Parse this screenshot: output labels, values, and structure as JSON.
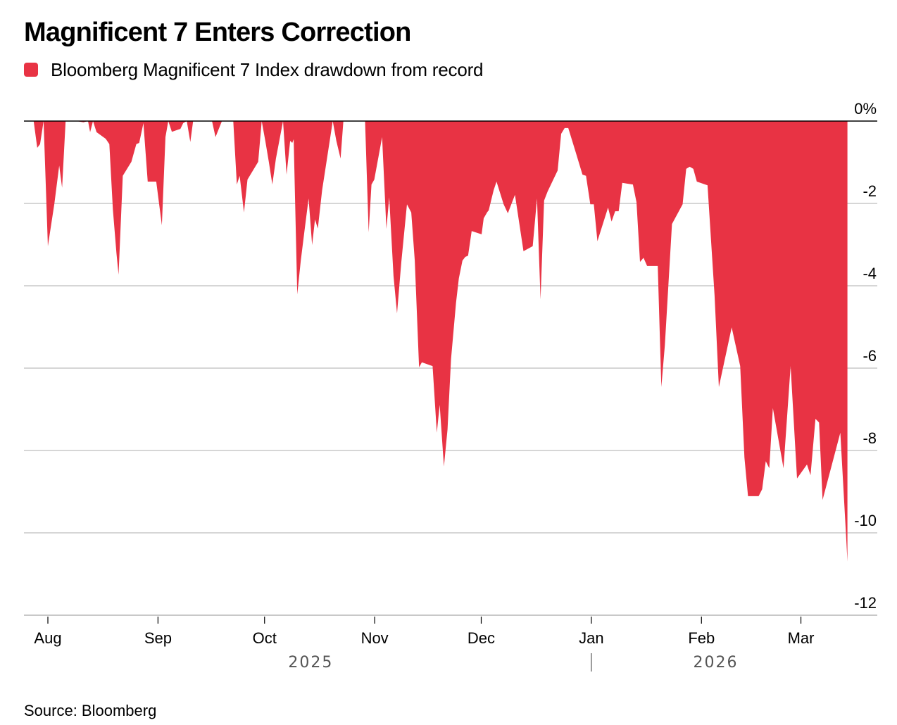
{
  "title": "Magnificent 7 Enters Correction",
  "legend": {
    "label": "Bloomberg Magnificent 7 Index drawdown from record",
    "color": "#e83344"
  },
  "source": "Source: Bloomberg",
  "chart_data": {
    "type": "area",
    "title": "Magnificent 7 Enters Correction",
    "xlabel": "",
    "ylabel": "",
    "y_unit": "%",
    "ylim": [
      -12,
      0
    ],
    "y_ticks": [
      0,
      -2,
      -4,
      -6,
      -8,
      -10,
      -12
    ],
    "y_tick_labels": [
      "0%",
      "-2",
      "-4",
      "-6",
      "-8",
      "-10",
      "-12"
    ],
    "grid": true,
    "legend_position": "top-left",
    "x_unit": "days since 2025-08-01",
    "x_range": [
      -4,
      231
    ],
    "x_ticks": [
      {
        "label": "Aug",
        "day": 0
      },
      {
        "label": "Sep",
        "day": 31
      },
      {
        "label": "Oct",
        "day": 61
      },
      {
        "label": "Nov",
        "day": 92
      },
      {
        "label": "Dec",
        "day": 122
      },
      {
        "label": "Jan",
        "day": 153
      },
      {
        "label": "Feb",
        "day": 184
      },
      {
        "label": "Mar",
        "day": 212
      }
    ],
    "years": [
      {
        "label": "2025",
        "day": 74
      },
      {
        "label": "2026",
        "day": 188
      }
    ],
    "year_separator_day": 153,
    "series": [
      {
        "name": "Bloomberg Magnificent 7 Index drawdown from record",
        "color": "#e83344",
        "points": [
          [
            -4.0,
            0.0
          ],
          [
            -3.0,
            -0.65
          ],
          [
            -2.2,
            -0.56
          ],
          [
            -1.2,
            0.0
          ],
          [
            0.0,
            -3.04
          ],
          [
            1.8,
            -2.02
          ],
          [
            3.2,
            -1.08
          ],
          [
            4.0,
            -1.62
          ],
          [
            5.0,
            0.0
          ],
          [
            8.0,
            0.0
          ],
          [
            10.0,
            -0.03
          ],
          [
            11.3,
            0.0
          ],
          [
            11.9,
            -0.27
          ],
          [
            12.7,
            0.0
          ],
          [
            13.7,
            -0.27
          ],
          [
            16.3,
            -0.43
          ],
          [
            17.3,
            -0.56
          ],
          [
            18.3,
            -2.14
          ],
          [
            19.3,
            -3.21
          ],
          [
            19.9,
            -3.73
          ],
          [
            21.1,
            -1.33
          ],
          [
            23.5,
            -0.99
          ],
          [
            24.9,
            -0.56
          ],
          [
            25.7,
            -0.53
          ],
          [
            26.9,
            -0.05
          ],
          [
            28.1,
            -1.47
          ],
          [
            30.5,
            -1.47
          ],
          [
            32.1,
            -2.53
          ],
          [
            33.1,
            -0.39
          ],
          [
            33.9,
            0.0
          ],
          [
            34.9,
            -0.26
          ],
          [
            37.3,
            -0.19
          ],
          [
            38.1,
            -0.05
          ],
          [
            39.1,
            0.0
          ],
          [
            40.1,
            -0.51
          ],
          [
            40.9,
            0.0
          ],
          [
            46.2,
            0.0
          ],
          [
            47.2,
            -0.39
          ],
          [
            49.0,
            0.0
          ],
          [
            52.2,
            0.0
          ],
          [
            53.2,
            -1.54
          ],
          [
            54.0,
            -1.33
          ],
          [
            55.2,
            -2.22
          ],
          [
            56.2,
            -1.42
          ],
          [
            59.2,
            -0.99
          ],
          [
            60.2,
            0.0
          ],
          [
            61.2,
            -0.48
          ],
          [
            62.2,
            -0.99
          ],
          [
            63.2,
            -1.54
          ],
          [
            64.2,
            -0.91
          ],
          [
            66.2,
            0.0
          ],
          [
            67.2,
            -1.3
          ],
          [
            68.2,
            -0.48
          ],
          [
            68.8,
            -0.53
          ],
          [
            69.2,
            -0.44
          ],
          [
            70.2,
            -4.21
          ],
          [
            71.2,
            -3.39
          ],
          [
            72.2,
            -2.7
          ],
          [
            73.4,
            -1.88
          ],
          [
            74.4,
            -3.01
          ],
          [
            75.2,
            -2.39
          ],
          [
            76.0,
            -2.61
          ],
          [
            77.2,
            -1.68
          ],
          [
            80.2,
            0.0
          ],
          [
            81.2,
            -0.48
          ],
          [
            82.4,
            -0.91
          ],
          [
            83.2,
            0.0
          ],
          [
            83.8,
            0.0
          ],
          [
            88.9,
            0.0
          ],
          [
            89.3,
            0.0
          ],
          [
            90.3,
            -2.7
          ],
          [
            91.1,
            -1.54
          ],
          [
            91.9,
            -1.42
          ],
          [
            94.1,
            -0.39
          ],
          [
            95.3,
            -2.62
          ],
          [
            96.1,
            -1.85
          ],
          [
            97.3,
            -3.76
          ],
          [
            98.3,
            -4.67
          ],
          [
            99.5,
            -3.42
          ],
          [
            101.1,
            -2.02
          ],
          [
            102.3,
            -2.22
          ],
          [
            103.3,
            -3.39
          ],
          [
            104.5,
            -5.98
          ],
          [
            105.3,
            -5.86
          ],
          [
            108.3,
            -5.95
          ],
          [
            109.5,
            -7.57
          ],
          [
            110.3,
            -6.89
          ],
          [
            111.5,
            -8.39
          ],
          [
            112.5,
            -7.49
          ],
          [
            113.5,
            -5.78
          ],
          [
            114.9,
            -4.41
          ],
          [
            115.7,
            -3.82
          ],
          [
            116.7,
            -3.39
          ],
          [
            117.5,
            -3.3
          ],
          [
            118.3,
            -3.27
          ],
          [
            119.3,
            -2.67
          ],
          [
            122.1,
            -2.75
          ],
          [
            122.7,
            -2.36
          ],
          [
            123.7,
            -2.21
          ],
          [
            124.1,
            -2.17
          ],
          [
            125.5,
            -1.68
          ],
          [
            126.3,
            -1.47
          ],
          [
            128.3,
            -2.02
          ],
          [
            129.5,
            -2.24
          ],
          [
            131.5,
            -1.79
          ],
          [
            133.9,
            -3.16
          ],
          [
            136.5,
            -3.04
          ],
          [
            137.7,
            -1.88
          ],
          [
            138.7,
            -4.33
          ],
          [
            139.7,
            -1.93
          ],
          [
            140.7,
            -1.71
          ],
          [
            143.5,
            -1.2
          ],
          [
            144.5,
            -0.31
          ],
          [
            145.5,
            -0.17
          ],
          [
            146.5,
            -0.17
          ],
          [
            148.5,
            -0.73
          ],
          [
            150.5,
            -1.3
          ],
          [
            151.5,
            -1.33
          ],
          [
            152.7,
            -2.02
          ],
          [
            153.7,
            -2.02
          ],
          [
            154.7,
            -2.92
          ],
          [
            157.7,
            -2.1
          ],
          [
            158.7,
            -2.44
          ],
          [
            159.7,
            -2.19
          ],
          [
            160.7,
            -2.19
          ],
          [
            161.7,
            -1.5
          ],
          [
            164.7,
            -1.54
          ],
          [
            165.7,
            -1.97
          ],
          [
            166.7,
            -3.42
          ],
          [
            167.7,
            -3.32
          ],
          [
            168.7,
            -3.52
          ],
          [
            171.7,
            -3.52
          ],
          [
            172.7,
            -6.46
          ],
          [
            173.7,
            -5.44
          ],
          [
            175.7,
            -2.5
          ],
          [
            178.7,
            -2.02
          ],
          [
            179.7,
            -1.16
          ],
          [
            180.7,
            -1.11
          ],
          [
            181.7,
            -1.16
          ],
          [
            182.7,
            -1.47
          ],
          [
            185.7,
            -1.56
          ],
          [
            187.7,
            -4.24
          ],
          [
            188.9,
            -6.46
          ],
          [
            192.5,
            -5.01
          ],
          [
            194.9,
            -5.95
          ],
          [
            196.1,
            -8.17
          ],
          [
            197.1,
            -9.11
          ],
          [
            200.1,
            -9.11
          ],
          [
            201.1,
            -8.94
          ],
          [
            202.1,
            -8.26
          ],
          [
            203.1,
            -8.43
          ],
          [
            204.1,
            -6.97
          ],
          [
            207.1,
            -8.43
          ],
          [
            209.1,
            -5.95
          ],
          [
            210.9,
            -8.68
          ],
          [
            213.7,
            -8.34
          ],
          [
            214.7,
            -8.6
          ],
          [
            216.1,
            -7.23
          ],
          [
            217.1,
            -7.32
          ],
          [
            218.1,
            -9.2
          ],
          [
            223.1,
            -7.57
          ],
          [
            224.7,
            -10.05
          ],
          [
            225.1,
            -10.7
          ]
        ]
      }
    ]
  }
}
